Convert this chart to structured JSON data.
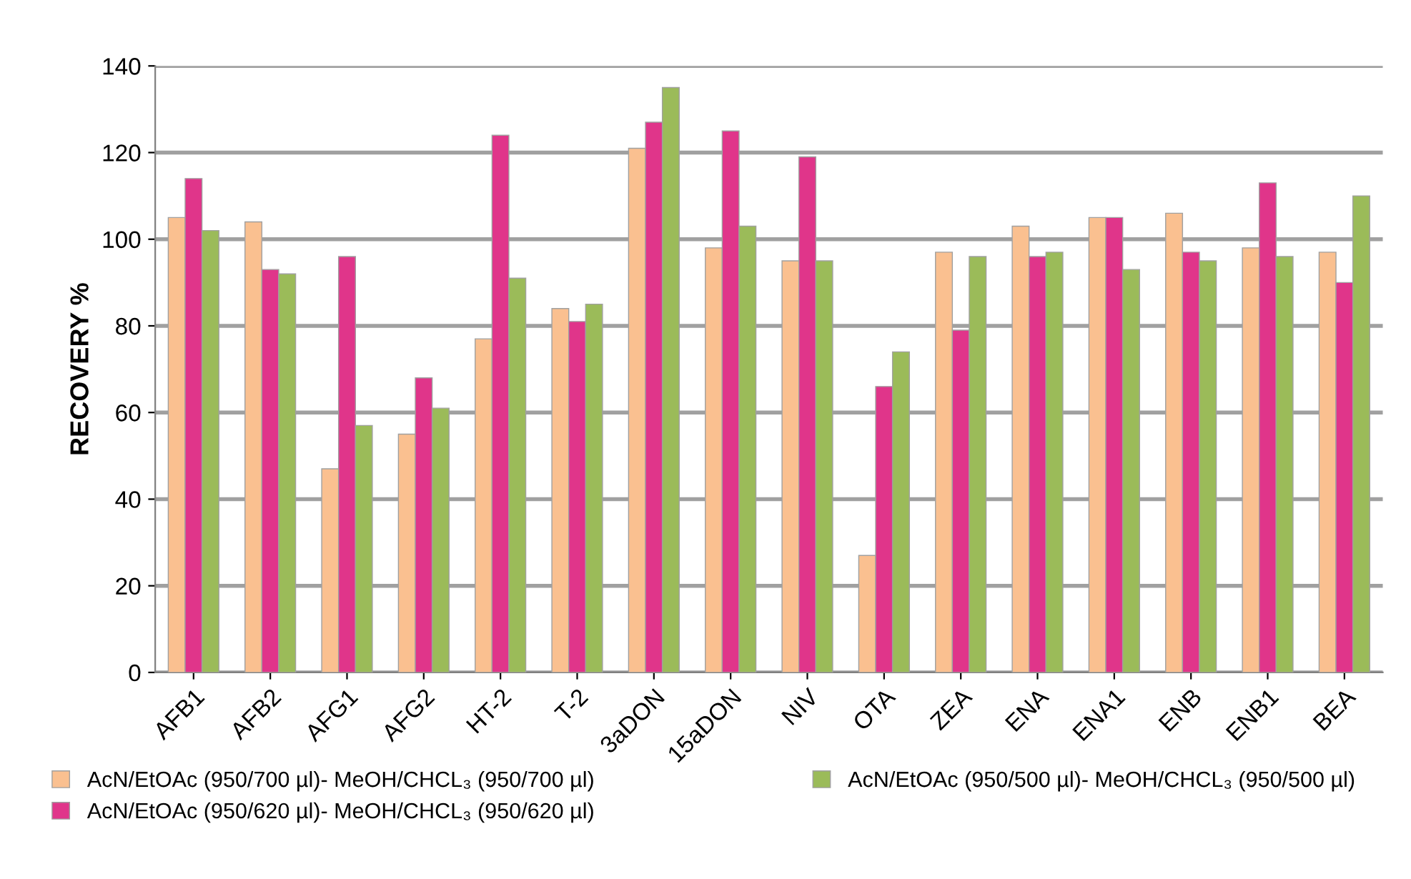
{
  "chart_data": {
    "type": "bar",
    "ylabel": "RECOVERY %",
    "categories": [
      "AFB1",
      "AFB2",
      "AFG1",
      "AFG2",
      "HT-2",
      "T-2",
      "3aDON",
      "15aDON",
      "NIV",
      "OTA",
      "ZEA",
      "ENA",
      "ENA1",
      "ENB",
      "ENB1",
      "BEA"
    ],
    "series": [
      {
        "name": "AcN/EtOAc (950/700 µl)- MeOH/CHCL₃ (950/700 µl)",
        "color": "#fac090",
        "values": [
          105,
          104,
          47,
          55,
          77,
          84,
          121,
          98,
          95,
          27,
          97,
          103,
          105,
          106,
          98,
          97
        ]
      },
      {
        "name": "AcN/EtOAc (950/620 µl)- MeOH/CHCL₃ (950/620 µl)",
        "color": "#e0358a",
        "values": [
          114,
          93,
          96,
          68,
          124,
          81,
          127,
          125,
          119,
          66,
          79,
          96,
          105,
          97,
          113,
          90
        ]
      },
      {
        "name": "AcN/EtOAc (950/500 µl)- MeOH/CHCL₃ (950/500 µl)",
        "color": "#9bbb59",
        "values": [
          102,
          92,
          57,
          61,
          91,
          85,
          135,
          103,
          95,
          74,
          96,
          97,
          93,
          95,
          96,
          110
        ]
      }
    ],
    "ylim": [
      0,
      140
    ],
    "yticks": [
      0,
      20,
      40,
      60,
      80,
      100,
      120,
      140
    ],
    "grid": "y",
    "legend": "bottom"
  }
}
